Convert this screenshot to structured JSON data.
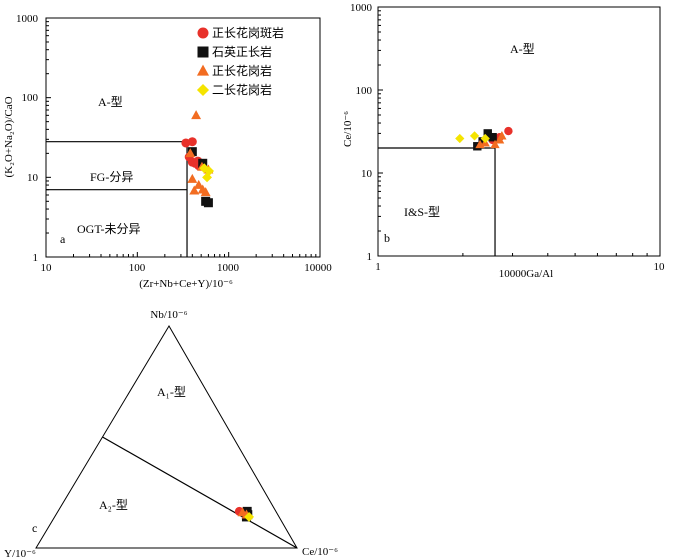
{
  "legend": [
    {
      "label": "正长花岗斑岩",
      "marker": "circle",
      "color": "#e8312a"
    },
    {
      "label": "石英正长岩",
      "marker": "square",
      "color": "#111111"
    },
    {
      "label": "正长花岗岩",
      "marker": "triangle",
      "color": "#f26c21"
    },
    {
      "label": "二长花岗岩",
      "marker": "diamond",
      "color": "#f5e400"
    }
  ],
  "chart_data": [
    {
      "type": "scatter",
      "panel": "a",
      "xscale": "log",
      "yscale": "log",
      "xlim": [
        10,
        10000
      ],
      "ylim": [
        1,
        1000
      ],
      "x_ticks": [
        "10",
        "100",
        "1000",
        "10000"
      ],
      "y_ticks": [
        "1",
        "10",
        "100",
        "1000"
      ],
      "xlabel": "(Zr+Nb+Ce+Y)/10⁻⁶",
      "ylabel": "(K₂O+Na₂O)/CaO",
      "regions": [
        {
          "label": "A-型",
          "x": 40,
          "y": 100
        },
        {
          "label": "FG-分异",
          "x": 45,
          "y": 10
        },
        {
          "label": "OGT-未分异",
          "x": 50,
          "y": 3.2
        }
      ],
      "boundaries": [
        {
          "x": [
            10,
            350,
            350
          ],
          "y": [
            28,
            28,
            1
          ]
        },
        {
          "x": [
            10,
            350
          ],
          "y": [
            7,
            7
          ]
        }
      ],
      "series": [
        {
          "name": "正长花岗斑岩",
          "points": [
            [
              340,
              27
            ],
            [
              400,
              28
            ],
            [
              370,
              18
            ],
            [
              400,
              15.5
            ],
            [
              430,
              15
            ],
            [
              470,
              14
            ],
            [
              460,
              16
            ]
          ]
        },
        {
          "name": "石英正长岩",
          "points": [
            [
              400,
              21
            ],
            [
              520,
              15
            ],
            [
              560,
              5
            ],
            [
              600,
              4.8
            ]
          ]
        },
        {
          "name": "正长花岗岩",
          "points": [
            [
              440,
              60
            ],
            [
              380,
              20
            ],
            [
              400,
              9.5
            ],
            [
              470,
              8
            ],
            [
              420,
              6.8
            ],
            [
              520,
              7
            ],
            [
              560,
              6.5
            ],
            [
              600,
              12.5
            ],
            [
              510,
              13.5
            ]
          ]
        },
        {
          "name": "二长花岗岩",
          "points": [
            [
              580,
              10
            ],
            [
              610,
              12
            ],
            [
              540,
              13
            ]
          ]
        }
      ]
    },
    {
      "type": "scatter",
      "panel": "b",
      "xscale": "log",
      "yscale": "log",
      "xlim": [
        1,
        10
      ],
      "ylim": [
        1,
        1000
      ],
      "x_ticks": [
        "1",
        "10"
      ],
      "y_ticks": [
        "1",
        "10",
        "100",
        "1000"
      ],
      "xlabel": "10000Ga/Al",
      "ylabel": "Ce/10⁻⁶",
      "regions": [
        {
          "label": "A-型",
          "x": 4.7,
          "y": 100
        },
        {
          "label": "I&S-型",
          "x": 1.8,
          "y": 4.2
        }
      ],
      "boundaries": [
        {
          "x": [
            1,
            2.6,
            2.6
          ],
          "y": [
            20,
            20,
            1
          ]
        }
      ],
      "series": [
        {
          "name": "正长花岗斑岩",
          "points": [
            [
              2.9,
              32
            ],
            [
              2.7,
              27
            ],
            [
              2.55,
              25
            ]
          ]
        },
        {
          "name": "石英正长岩",
          "points": [
            [
              2.45,
              30
            ],
            [
              2.25,
              21
            ],
            [
              2.35,
              24
            ],
            [
              2.55,
              27
            ]
          ]
        },
        {
          "name": "正长花岗岩",
          "points": [
            [
              2.3,
              22
            ],
            [
              2.4,
              23
            ],
            [
              2.7,
              25
            ],
            [
              2.6,
              22
            ],
            [
              2.75,
              28
            ]
          ]
        },
        {
          "name": "二长花岗岩",
          "points": [
            [
              1.95,
              26
            ],
            [
              2.2,
              28
            ],
            [
              2.4,
              26
            ]
          ]
        }
      ]
    },
    {
      "type": "ternary",
      "panel": "c",
      "apex_top": "Nb/10⁻⁶",
      "apex_left": "Y/10⁻⁶",
      "apex_right": "Ce/10⁻⁶",
      "regions": [
        {
          "label": "A₁-型"
        },
        {
          "label": "A₂-型"
        }
      ],
      "divider": {
        "from": [
          0.5,
          0.5,
          0
        ],
        "to": [
          0,
          0,
          1
        ]
      },
      "series": [
        {
          "name": "正长花岗斑岩",
          "points": [
            [
              0.165,
              0.14,
              0.695
            ]
          ]
        },
        {
          "name": "石英正长岩",
          "points": [
            [
              0.15,
              0.115,
              0.735
            ],
            [
              0.165,
              0.11,
              0.725
            ],
            [
              0.14,
              0.125,
              0.735
            ]
          ]
        },
        {
          "name": "正长花岗岩",
          "points": [
            [
              0.16,
              0.13,
              0.71
            ],
            [
              0.15,
              0.12,
              0.73
            ]
          ]
        },
        {
          "name": "二长花岗岩",
          "points": [
            [
              0.14,
              0.115,
              0.745
            ]
          ]
        }
      ]
    }
  ]
}
